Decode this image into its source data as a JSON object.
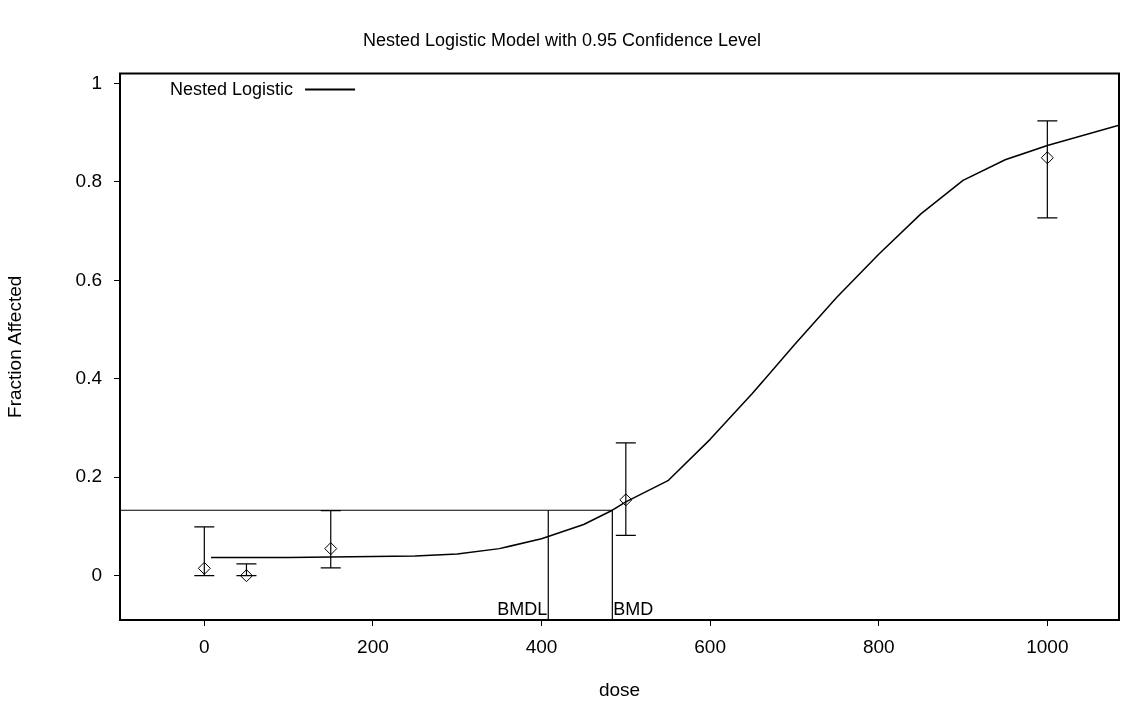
{
  "chart_data": {
    "type": "line",
    "title": "Nested Logistic Model with 0.95 Confidence Level",
    "xlabel": "dose",
    "ylabel": "Fraction Affected",
    "xlim": [
      -100,
      1085
    ],
    "xticks": [
      0,
      200,
      400,
      600,
      800,
      1000
    ],
    "ylim": [
      -0.09,
      1.02
    ],
    "yticks": [
      0,
      0.2,
      0.4,
      0.6,
      0.8,
      1
    ],
    "grid": false,
    "legend": "top left",
    "series": [
      {
        "name": "Nested Logistic",
        "color": "#000000",
        "marker": "none",
        "line_style": "solid",
        "x": [
          8,
          100,
          200,
          250,
          300,
          350,
          400,
          450,
          484,
          500,
          550,
          600,
          650,
          700,
          750,
          800,
          850,
          900,
          950,
          1000,
          1085
        ],
        "values": [
          0.037,
          0.037,
          0.039,
          0.04,
          0.044,
          0.055,
          0.075,
          0.104,
          0.133,
          0.15,
          0.193,
          0.277,
          0.37,
          0.469,
          0.565,
          0.653,
          0.735,
          0.803,
          0.845,
          0.874,
          0.915
        ]
      },
      {
        "type": "scatter",
        "color": "#000000",
        "marker": "diamond",
        "x": [
          0,
          50,
          150,
          500,
          1000
        ],
        "values": [
          0.015,
          0,
          0.055,
          0.154,
          0.849
        ],
        "errors": [
          [
            0,
            0.099
          ],
          [
            0,
            0.024
          ],
          [
            0.016,
            0.132
          ],
          [
            0.082,
            0.27
          ],
          [
            0.727,
            0.924
          ]
        ]
      }
    ],
    "ref_lines": [
      {
        "axis": "y",
        "value": 0.133,
        "label": null
      },
      {
        "axis": "x",
        "value": 408,
        "label": "BMDL"
      },
      {
        "axis": "x",
        "value": 484,
        "label": "BMD"
      }
    ]
  }
}
